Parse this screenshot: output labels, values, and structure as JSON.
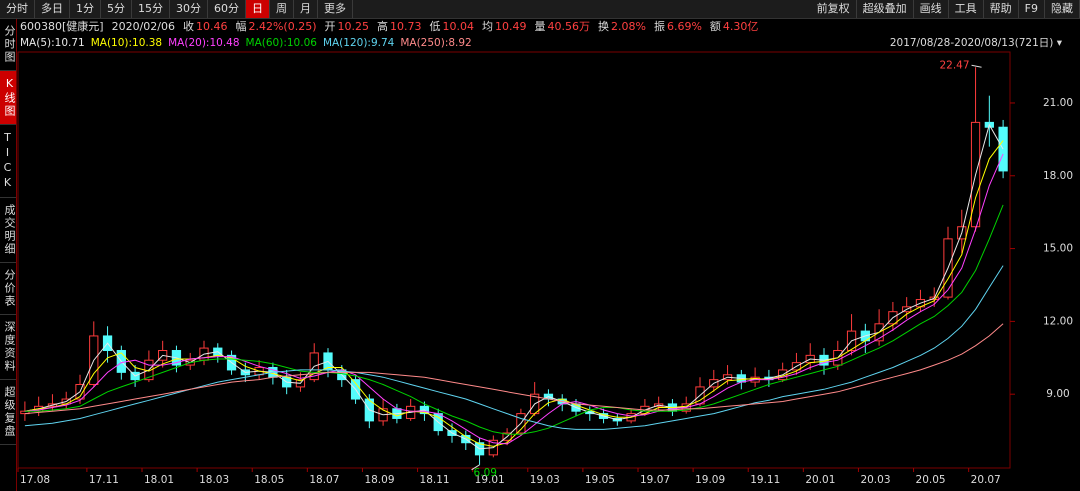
{
  "toolbar": {
    "tabs": [
      "分时",
      "多日",
      "1分",
      "5分",
      "15分",
      "30分",
      "60分",
      "日",
      "周",
      "月",
      "更多"
    ],
    "active_tab": 7,
    "right_buttons": [
      "前复权",
      "超级叠加",
      "画线",
      "工具",
      "帮助",
      "F9",
      "隐藏"
    ]
  },
  "info_bar": {
    "stock": "600380[健康元]",
    "date": "2020/02/06",
    "fields": [
      {
        "label": "收",
        "value": "10.46"
      },
      {
        "label": "幅",
        "value": "2.42%(0.25)"
      },
      {
        "label": "开",
        "value": "10.25"
      },
      {
        "label": "高",
        "value": "10.73"
      },
      {
        "label": "低",
        "value": "10.04"
      },
      {
        "label": "均",
        "value": "10.49"
      },
      {
        "label": "量",
        "value": "40.56万"
      },
      {
        "label": "换",
        "value": "2.08%"
      },
      {
        "label": "振",
        "value": "6.69%"
      },
      {
        "label": "额",
        "value": "4.30亿"
      }
    ]
  },
  "sidebar": {
    "items": [
      "分时图",
      "K线图",
      "TICK",
      "成交明细",
      "分价表",
      "深度资料",
      "超级复盘"
    ],
    "active_item": 1
  },
  "chart_data": {
    "type": "candlestick",
    "range_label": "2017/08/28-2020/08/13(721日)",
    "categories": [
      "17.08",
      null,
      null,
      null,
      null,
      "17.11",
      null,
      null,
      null,
      "18.01",
      null,
      null,
      null,
      "18.03",
      null,
      null,
      null,
      "18.05",
      null,
      null,
      null,
      "18.07",
      null,
      null,
      null,
      "18.09",
      null,
      null,
      null,
      "18.11",
      null,
      null,
      null,
      "19.01",
      null,
      null,
      null,
      "19.03",
      null,
      null,
      null,
      "19.05",
      null,
      null,
      null,
      "19.07",
      null,
      null,
      null,
      "19.09",
      null,
      null,
      null,
      "19.11",
      null,
      null,
      null,
      "20.01",
      null,
      null,
      null,
      "20.03",
      null,
      null,
      null,
      "20.05",
      null,
      null,
      null,
      "20.07",
      null,
      null
    ],
    "open": [
      8.2,
      8.3,
      8.5,
      8.6,
      8.8,
      9.4,
      11.4,
      10.8,
      9.9,
      9.6,
      10.4,
      10.8,
      10.2,
      10.4,
      10.9,
      10.6,
      10.0,
      9.8,
      10.1,
      9.7,
      9.3,
      9.6,
      10.7,
      10.0,
      9.6,
      8.8,
      7.9,
      8.4,
      8.0,
      8.5,
      8.2,
      7.5,
      7.3,
      7.0,
      6.5,
      7.1,
      7.4,
      8.2,
      9.0,
      8.8,
      8.6,
      8.3,
      8.2,
      8.0,
      7.9,
      8.2,
      8.5,
      8.6,
      8.3,
      8.6,
      9.3,
      9.6,
      9.8,
      9.5,
      9.7,
      9.6,
      10.0,
      10.3,
      10.6,
      10.2,
      10.8,
      11.6,
      11.2,
      11.9,
      12.4,
      12.6,
      12.9,
      13.0,
      15.4,
      15.9,
      20.2,
      20.0
    ],
    "high": [
      8.7,
      8.9,
      9.0,
      9.1,
      9.8,
      12.0,
      11.8,
      11.0,
      10.2,
      10.8,
      11.2,
      11.0,
      10.7,
      11.2,
      11.1,
      10.8,
      10.3,
      10.4,
      10.3,
      10.0,
      9.9,
      11.1,
      10.9,
      10.2,
      9.8,
      9.0,
      8.8,
      8.6,
      8.8,
      8.7,
      8.4,
      7.8,
      7.5,
      7.2,
      7.3,
      7.6,
      8.4,
      9.5,
      9.2,
      9.0,
      8.8,
      8.5,
      8.4,
      8.2,
      8.4,
      8.8,
      8.9,
      8.8,
      8.9,
      9.7,
      10.0,
      10.2,
      10.0,
      10.1,
      10.0,
      10.3,
      10.7,
      11.1,
      10.9,
      11.2,
      12.3,
      11.9,
      12.5,
      12.8,
      13.0,
      13.3,
      13.4,
      15.9,
      16.6,
      22.47,
      21.3,
      20.3
    ],
    "low": [
      7.9,
      8.1,
      8.3,
      8.4,
      8.6,
      9.3,
      10.3,
      9.6,
      9.3,
      9.5,
      10.1,
      9.9,
      10.0,
      10.2,
      10.3,
      9.8,
      9.5,
      9.6,
      9.4,
      9.0,
      9.1,
      9.5,
      9.7,
      9.3,
      8.6,
      7.6,
      7.7,
      7.8,
      7.9,
      7.9,
      7.3,
      7.0,
      6.7,
      6.09,
      6.4,
      6.9,
      7.3,
      8.1,
      8.5,
      8.3,
      8.1,
      7.9,
      7.8,
      7.7,
      7.8,
      8.1,
      8.3,
      8.1,
      8.2,
      8.5,
      9.1,
      9.4,
      9.2,
      9.3,
      9.3,
      9.5,
      9.8,
      10.0,
      9.8,
      10.0,
      10.6,
      10.7,
      11.0,
      11.6,
      12.1,
      12.4,
      12.6,
      12.9,
      14.8,
      15.7,
      19.2,
      17.9
    ],
    "close": [
      8.3,
      8.5,
      8.6,
      8.8,
      9.4,
      11.4,
      10.8,
      9.9,
      9.6,
      10.4,
      10.8,
      10.2,
      10.4,
      10.9,
      10.6,
      10.0,
      9.8,
      10.1,
      9.7,
      9.3,
      9.6,
      10.7,
      10.0,
      9.6,
      8.8,
      7.9,
      8.4,
      8.0,
      8.5,
      8.2,
      7.5,
      7.3,
      7.0,
      6.5,
      7.1,
      7.4,
      8.2,
      9.0,
      8.8,
      8.6,
      8.3,
      8.2,
      8.0,
      7.9,
      8.2,
      8.5,
      8.6,
      8.3,
      8.6,
      9.3,
      9.6,
      9.8,
      9.5,
      9.7,
      9.6,
      10.0,
      10.3,
      10.6,
      10.2,
      10.8,
      11.6,
      11.2,
      11.9,
      12.4,
      12.6,
      12.9,
      13.0,
      15.4,
      15.9,
      20.2,
      20.0,
      18.2
    ],
    "up_color": "#ff3c3c",
    "down_color": "#54fcfc",
    "series": [
      {
        "name": "MA(5):10.71",
        "color": "#e8e8e8",
        "values": [
          8.3,
          8.4,
          8.55,
          8.7,
          9.1,
          10.4,
          11.1,
          10.35,
          9.75,
          10.0,
          10.6,
          10.5,
          10.3,
          10.65,
          10.75,
          10.3,
          9.9,
          9.95,
          9.9,
          9.5,
          9.45,
          10.15,
          10.35,
          9.8,
          9.2,
          8.35,
          8.15,
          8.2,
          8.25,
          8.35,
          7.85,
          7.4,
          7.15,
          6.75,
          6.8,
          7.25,
          7.8,
          8.6,
          8.9,
          8.7,
          8.45,
          8.25,
          8.1,
          7.95,
          8.05,
          8.35,
          8.55,
          8.45,
          8.45,
          8.95,
          9.45,
          9.7,
          9.65,
          9.6,
          9.65,
          9.8,
          10.15,
          10.45,
          10.4,
          10.5,
          11.2,
          11.4,
          11.55,
          12.15,
          12.5,
          12.75,
          12.95,
          14.2,
          15.65,
          18.05,
          20.1,
          19.1
        ]
      },
      {
        "name": "MA(10):10.38",
        "color": "#ffff00",
        "values": [
          8.3,
          8.4,
          8.45,
          8.6,
          8.9,
          9.85,
          10.5,
          10.7,
          10.1,
          9.95,
          10.25,
          10.45,
          10.45,
          10.5,
          10.6,
          10.5,
          10.15,
          9.95,
          9.85,
          9.7,
          9.55,
          9.85,
          10.1,
          10.1,
          9.45,
          8.75,
          8.35,
          8.1,
          8.3,
          8.25,
          8.05,
          7.65,
          7.25,
          6.95,
          6.85,
          7.0,
          7.55,
          8.2,
          8.65,
          8.8,
          8.55,
          8.35,
          8.15,
          8.05,
          8.05,
          8.2,
          8.45,
          8.45,
          8.5,
          8.75,
          9.15,
          9.55,
          9.6,
          9.65,
          9.6,
          9.75,
          9.95,
          10.3,
          10.35,
          10.5,
          10.85,
          11.2,
          11.55,
          11.85,
          12.3,
          12.6,
          12.85,
          13.75,
          14.75,
          17.1,
          18.7,
          19.45
        ]
      },
      {
        "name": "MA(20):10.48",
        "color": "#ff40ff",
        "values": [
          8.3,
          8.35,
          8.45,
          8.55,
          8.75,
          9.3,
          9.9,
          10.3,
          10.4,
          10.2,
          10.2,
          10.3,
          10.45,
          10.5,
          10.55,
          10.55,
          10.35,
          10.15,
          10.0,
          9.85,
          9.65,
          9.75,
          9.9,
          10.0,
          9.8,
          9.3,
          8.8,
          8.4,
          8.3,
          8.3,
          8.2,
          7.9,
          7.55,
          7.2,
          7.0,
          6.95,
          7.3,
          7.75,
          8.2,
          8.6,
          8.7,
          8.55,
          8.35,
          8.2,
          8.1,
          8.15,
          8.3,
          8.4,
          8.45,
          8.6,
          8.9,
          9.25,
          9.5,
          9.6,
          9.6,
          9.7,
          9.85,
          10.1,
          10.3,
          10.4,
          10.7,
          11.0,
          11.3,
          11.65,
          12.05,
          12.4,
          12.7,
          13.3,
          14.2,
          15.8,
          17.6,
          18.9
        ]
      },
      {
        "name": "MA(60):10.06",
        "color": "#00d200",
        "values": [
          8.3,
          8.3,
          8.35,
          8.4,
          8.5,
          8.8,
          9.1,
          9.3,
          9.5,
          9.7,
          9.9,
          10.1,
          10.3,
          10.4,
          10.45,
          10.45,
          10.4,
          10.35,
          10.25,
          10.1,
          9.95,
          9.9,
          9.9,
          9.85,
          9.75,
          9.6,
          9.4,
          9.15,
          8.9,
          8.6,
          8.35,
          8.1,
          7.9,
          7.65,
          7.45,
          7.35,
          7.35,
          7.45,
          7.6,
          7.85,
          8.1,
          8.35,
          8.45,
          8.45,
          8.35,
          8.3,
          8.3,
          8.3,
          8.35,
          8.45,
          8.6,
          8.8,
          9.0,
          9.2,
          9.4,
          9.55,
          9.7,
          9.85,
          10.0,
          10.15,
          10.4,
          10.65,
          10.9,
          11.2,
          11.55,
          11.9,
          12.2,
          12.65,
          13.2,
          14.1,
          15.4,
          16.8
        ]
      },
      {
        "name": "MA(120):9.74",
        "color": "#5fd4f0",
        "values": [
          7.7,
          7.75,
          7.8,
          7.9,
          8.0,
          8.15,
          8.3,
          8.45,
          8.6,
          8.75,
          8.9,
          9.05,
          9.2,
          9.35,
          9.5,
          9.6,
          9.7,
          9.8,
          9.9,
          9.95,
          10.0,
          10.0,
          10.0,
          9.95,
          9.9,
          9.8,
          9.7,
          9.55,
          9.4,
          9.25,
          9.1,
          8.95,
          8.8,
          8.6,
          8.4,
          8.2,
          8.0,
          7.85,
          7.7,
          7.6,
          7.55,
          7.55,
          7.55,
          7.6,
          7.65,
          7.7,
          7.8,
          7.9,
          8.0,
          8.1,
          8.2,
          8.35,
          8.5,
          8.65,
          8.75,
          8.9,
          9.0,
          9.1,
          9.2,
          9.35,
          9.5,
          9.7,
          9.9,
          10.1,
          10.35,
          10.6,
          10.9,
          11.3,
          11.8,
          12.5,
          13.4,
          14.3
        ]
      },
      {
        "name": "MA(250):8.92",
        "color": "#ff8a8a",
        "values": [
          8.2,
          8.25,
          8.3,
          8.35,
          8.4,
          8.5,
          8.6,
          8.7,
          8.8,
          8.9,
          9.0,
          9.1,
          9.2,
          9.3,
          9.4,
          9.5,
          9.55,
          9.6,
          9.7,
          9.75,
          9.8,
          9.85,
          9.9,
          9.9,
          9.9,
          9.9,
          9.85,
          9.8,
          9.75,
          9.7,
          9.6,
          9.5,
          9.4,
          9.3,
          9.2,
          9.1,
          9.0,
          8.9,
          8.8,
          8.7,
          8.6,
          8.55,
          8.5,
          8.45,
          8.4,
          8.35,
          8.35,
          8.35,
          8.4,
          8.4,
          8.45,
          8.5,
          8.55,
          8.6,
          8.65,
          8.7,
          8.8,
          8.9,
          9.0,
          9.1,
          9.25,
          9.4,
          9.55,
          9.7,
          9.85,
          10.0,
          10.2,
          10.4,
          10.65,
          11.0,
          11.4,
          11.9
        ]
      }
    ],
    "ylim": [
      6,
      23.1
    ],
    "yticks": [
      {
        "value": 9,
        "label": "9.00"
      },
      {
        "value": 12,
        "label": "12.00"
      },
      {
        "value": 15,
        "label": "15.00"
      },
      {
        "value": 18,
        "label": "18.00"
      },
      {
        "value": 21,
        "label": "21.00"
      }
    ],
    "grid": false
  }
}
